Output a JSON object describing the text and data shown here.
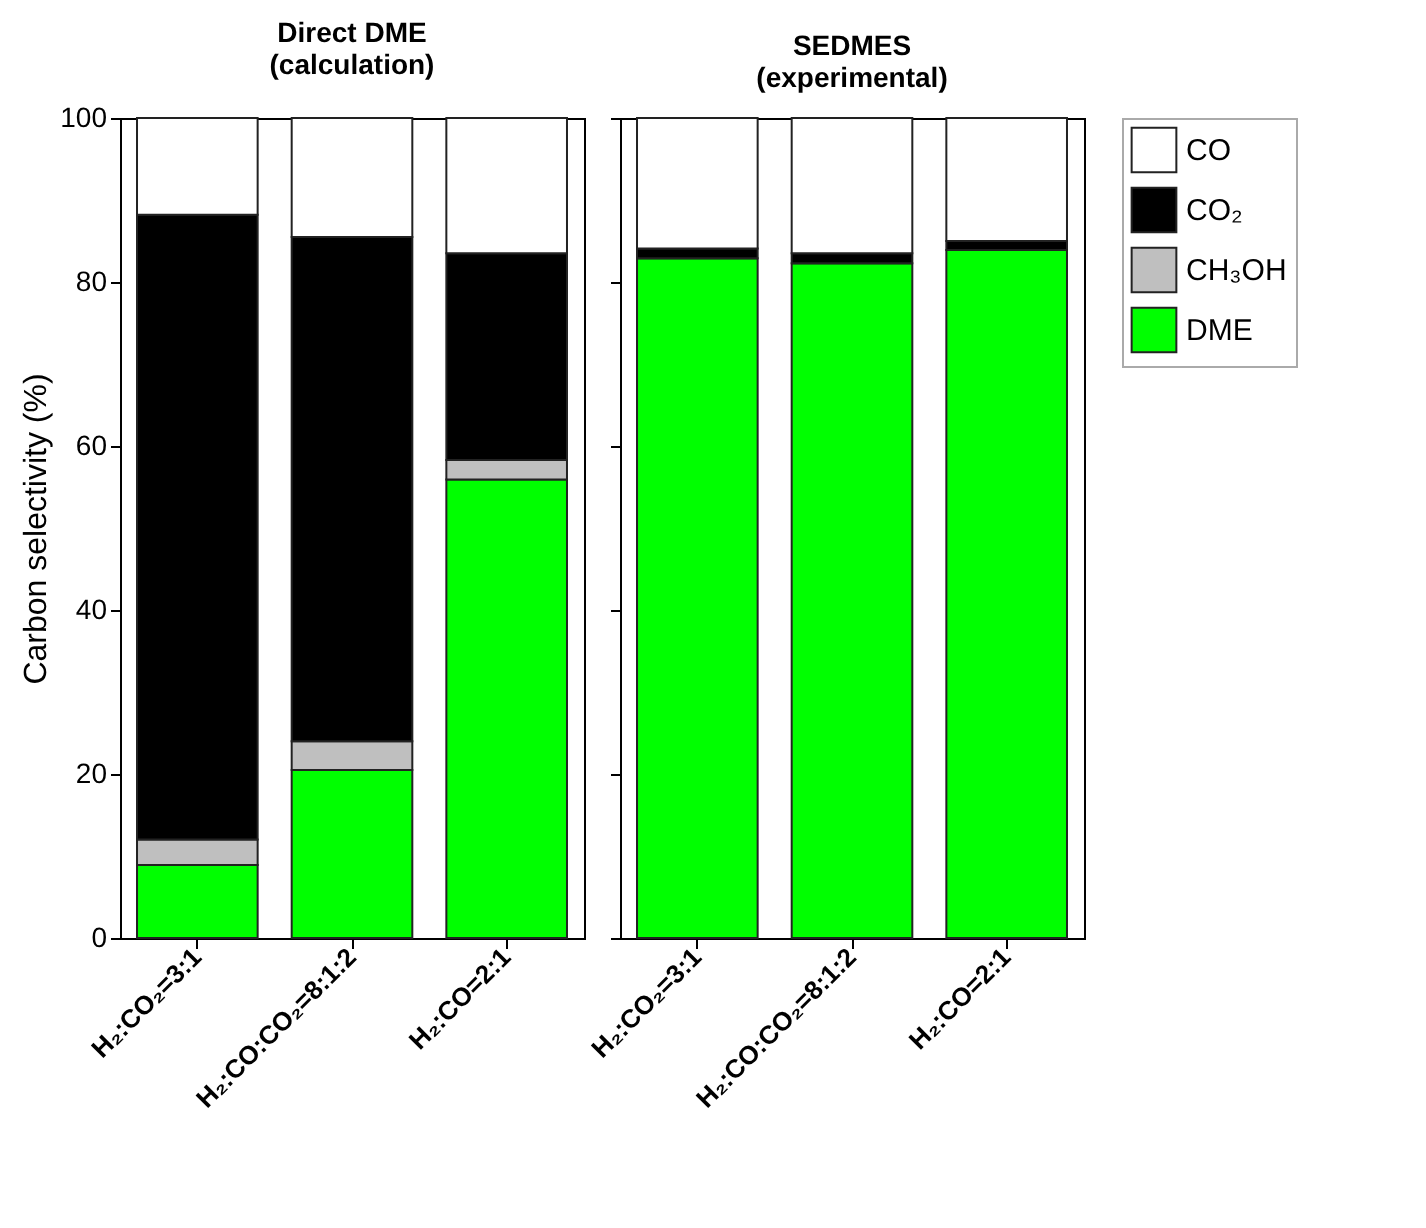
{
  "chart_data": [
    {
      "type": "bar",
      "title": "Direct DME\n(calculation)",
      "ylabel": "Carbon selectivity (%)",
      "stacked": true,
      "grid": false,
      "legend": "right",
      "categories": [
        "H₂:CO₂=3:1",
        "H₂:CO:CO₂=8:1:2",
        "H₂:CO=2:1"
      ],
      "ylim": [
        0,
        100
      ],
      "yticks": [
        0,
        20,
        40,
        60,
        80,
        100
      ],
      "series": [
        {
          "name": "DME",
          "color": "#00ff00",
          "values": [
            8.9,
            20.5,
            55.9
          ]
        },
        {
          "name": "CH₃OH",
          "color": "#bfbfbf",
          "values": [
            3.1,
            3.5,
            2.4
          ]
        },
        {
          "name": "CO₂",
          "color": "#000000",
          "values": [
            76.2,
            61.5,
            25.2
          ]
        },
        {
          "name": "CO",
          "color": "#ffffff",
          "values": [
            11.8,
            14.5,
            16.5
          ]
        }
      ]
    },
    {
      "type": "bar",
      "title": "SEDMES\n(experimental)",
      "stacked": true,
      "grid": false,
      "tick_labels": "x",
      "legend": "right",
      "categories": [
        "H₂:CO₂=3:1",
        "H₂:CO:CO₂=8:1:2",
        "H₂:CO=2:1"
      ],
      "ylim": [
        0,
        100
      ],
      "yticks": [
        0,
        20,
        40,
        60,
        80,
        100
      ],
      "series": [
        {
          "name": "DME",
          "color": "#00ff00",
          "values": [
            82.9,
            82.3,
            83.9
          ]
        },
        {
          "name": "CH₃OH",
          "color": "#bfbfbf",
          "values": [
            0,
            0,
            0
          ]
        },
        {
          "name": "CO₂",
          "color": "#000000",
          "values": [
            1.2,
            1.2,
            1.1
          ]
        },
        {
          "name": "CO",
          "color": "#ffffff",
          "values": [
            15.9,
            16.5,
            15.0
          ]
        }
      ]
    }
  ]
}
